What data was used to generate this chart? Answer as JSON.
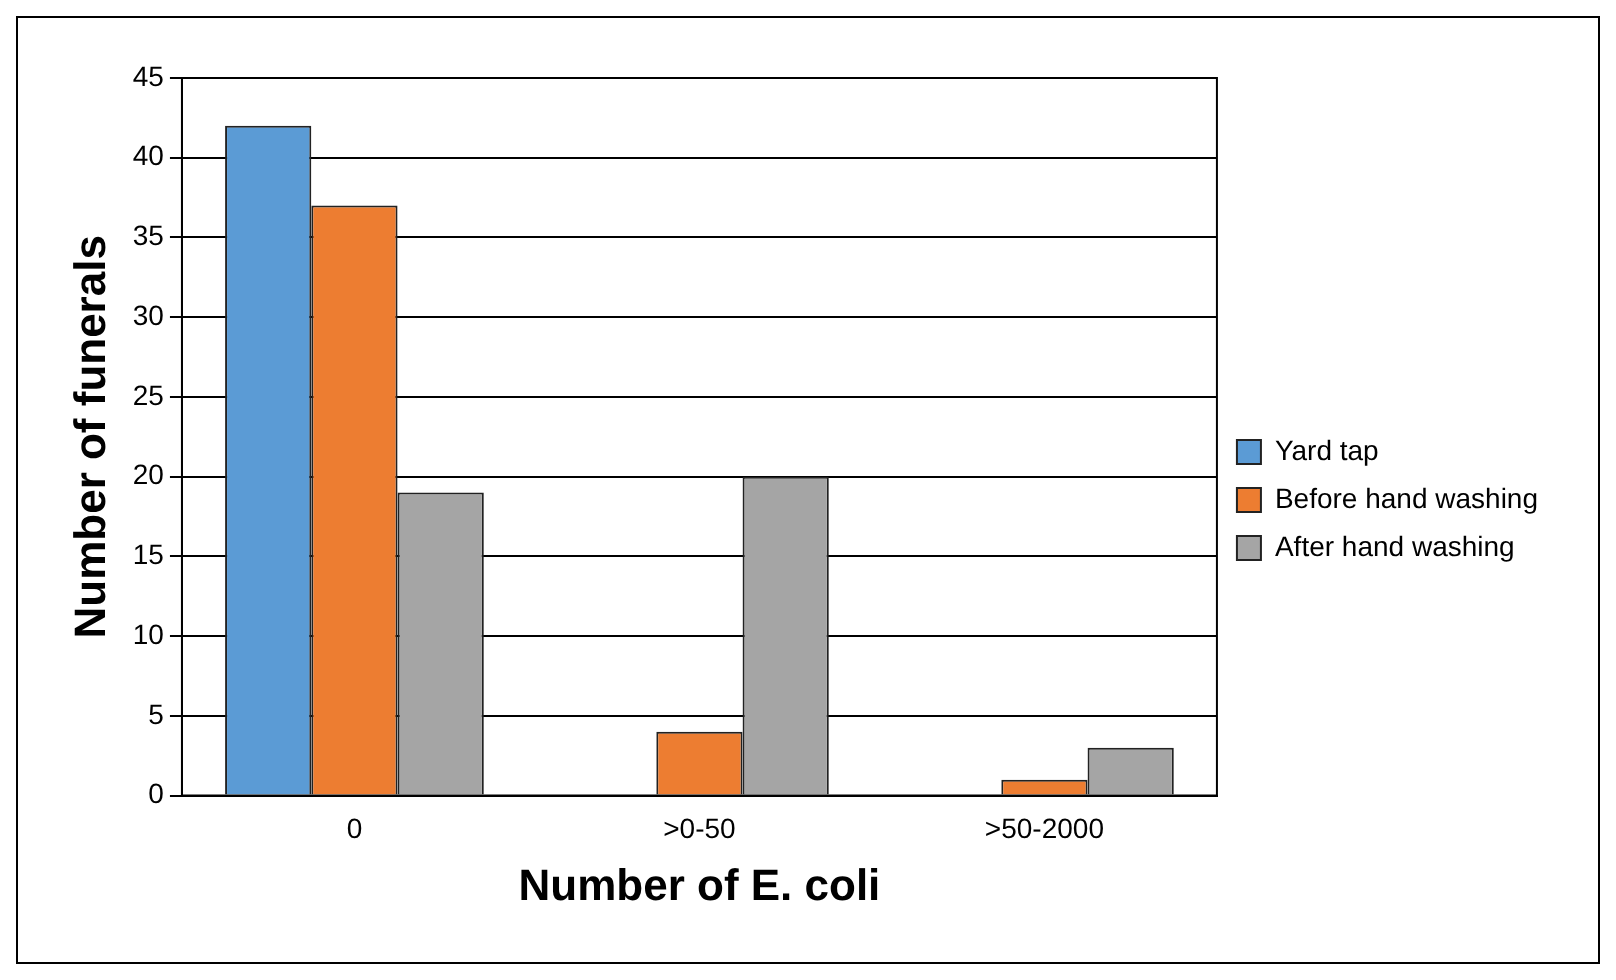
{
  "chart_data": {
    "type": "bar",
    "xlabel": "Number of E. coli",
    "ylabel": "Number of funerals",
    "categories": [
      "0",
      ">0-50",
      ">50-2000"
    ],
    "series": [
      {
        "name": "Yard tap",
        "color": "#5b9bd5",
        "values": [
          42,
          0,
          0
        ]
      },
      {
        "name": "Before hand washing",
        "color": "#ed7d31",
        "values": [
          37,
          4,
          1
        ]
      },
      {
        "name": "After hand washing",
        "color": "#a5a5a5",
        "values": [
          19,
          20,
          3
        ]
      }
    ],
    "ylim": [
      0,
      45
    ],
    "yticks": [
      0,
      5,
      10,
      15,
      20,
      25,
      30,
      35,
      40,
      45
    ],
    "grid": "y",
    "legend": "right"
  }
}
